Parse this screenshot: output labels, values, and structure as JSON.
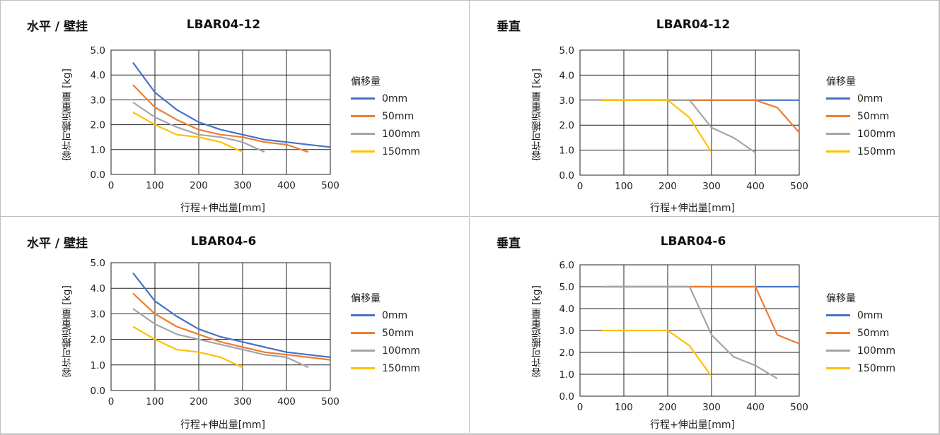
{
  "legend_title": "偏移量",
  "colors": {
    "0mm": "#4472c4",
    "50mm": "#ed7d31",
    "100mm": "#a5a5a5",
    "150mm": "#ffc000"
  },
  "chart_data": [
    {
      "type": "line",
      "orientation": "水平 / 壁挂",
      "title": "LBAR04-12",
      "xlabel": "行程+伸出量[mm]",
      "ylabel": "容许可搬运重量 [kg]",
      "xlim": [
        0,
        500
      ],
      "ylim": [
        0,
        5
      ],
      "xticks": [
        "0",
        "100",
        "200",
        "300",
        "400",
        "500"
      ],
      "yticks": [
        "0.0",
        "1.0",
        "2.0",
        "3.0",
        "4.0",
        "5.0"
      ],
      "grid": true,
      "legend": "right",
      "series": [
        {
          "name": "0mm",
          "color": "#4472c4",
          "x": [
            50,
            100,
            150,
            200,
            250,
            300,
            350,
            400,
            450,
            500
          ],
          "y": [
            4.5,
            3.3,
            2.6,
            2.1,
            1.8,
            1.6,
            1.4,
            1.3,
            1.2,
            1.1
          ]
        },
        {
          "name": "50mm",
          "color": "#ed7d31",
          "x": [
            50,
            100,
            150,
            200,
            250,
            300,
            350,
            400,
            450
          ],
          "y": [
            3.6,
            2.7,
            2.2,
            1.8,
            1.6,
            1.5,
            1.3,
            1.2,
            0.9
          ]
        },
        {
          "name": "100mm",
          "color": "#a5a5a5",
          "x": [
            50,
            100,
            150,
            200,
            250,
            300,
            350
          ],
          "y": [
            2.9,
            2.3,
            1.9,
            1.6,
            1.5,
            1.3,
            0.9
          ]
        },
        {
          "name": "150mm",
          "color": "#ffc000",
          "x": [
            50,
            100,
            150,
            200,
            250,
            300
          ],
          "y": [
            2.5,
            2.0,
            1.6,
            1.5,
            1.3,
            0.9
          ]
        }
      ]
    },
    {
      "type": "line",
      "orientation": "垂直",
      "title": "LBAR04-12",
      "xlabel": "行程+伸出量[mm]",
      "ylabel": "容许可搬运重量 [kg]",
      "xlim": [
        0,
        500
      ],
      "ylim": [
        0,
        5
      ],
      "xticks": [
        "0",
        "100",
        "200",
        "300",
        "400",
        "500"
      ],
      "yticks": [
        "0.0",
        "1.0",
        "2.0",
        "3.0",
        "4.0",
        "5.0"
      ],
      "grid": true,
      "legend": "right",
      "series": [
        {
          "name": "0mm",
          "color": "#4472c4",
          "x": [
            50,
            500
          ],
          "y": [
            3.0,
            3.0
          ]
        },
        {
          "name": "50mm",
          "color": "#ed7d31",
          "x": [
            50,
            400,
            450,
            500
          ],
          "y": [
            3.0,
            3.0,
            2.7,
            1.7
          ]
        },
        {
          "name": "100mm",
          "color": "#a5a5a5",
          "x": [
            50,
            250,
            300,
            350,
            400
          ],
          "y": [
            3.0,
            3.0,
            1.9,
            1.5,
            0.9
          ]
        },
        {
          "name": "150mm",
          "color": "#ffc000",
          "x": [
            50,
            200,
            250,
            300
          ],
          "y": [
            3.0,
            3.0,
            2.3,
            0.9
          ]
        }
      ]
    },
    {
      "type": "line",
      "orientation": "水平 / 壁挂",
      "title": "LBAR04-6",
      "xlabel": "行程+伸出量[mm]",
      "ylabel": "容许可搬运重量 [kg]",
      "xlim": [
        0,
        500
      ],
      "ylim": [
        0,
        5
      ],
      "xticks": [
        "0",
        "100",
        "200",
        "300",
        "400",
        "500"
      ],
      "yticks": [
        "0.0",
        "1.0",
        "2.0",
        "3.0",
        "4.0",
        "5.0"
      ],
      "grid": true,
      "legend": "right",
      "series": [
        {
          "name": "0mm",
          "color": "#4472c4",
          "x": [
            50,
            100,
            150,
            200,
            250,
            300,
            350,
            400,
            450,
            500
          ],
          "y": [
            4.6,
            3.5,
            2.9,
            2.4,
            2.1,
            1.9,
            1.7,
            1.5,
            1.4,
            1.3
          ]
        },
        {
          "name": "50mm",
          "color": "#ed7d31",
          "x": [
            50,
            100,
            150,
            200,
            250,
            300,
            350,
            400,
            450,
            500
          ],
          "y": [
            3.8,
            3.0,
            2.5,
            2.2,
            1.9,
            1.7,
            1.5,
            1.4,
            1.3,
            1.2
          ]
        },
        {
          "name": "100mm",
          "color": "#a5a5a5",
          "x": [
            50,
            100,
            150,
            200,
            250,
            300,
            350,
            400,
            450
          ],
          "y": [
            3.2,
            2.6,
            2.2,
            2.0,
            1.8,
            1.6,
            1.4,
            1.3,
            0.9
          ]
        },
        {
          "name": "150mm",
          "color": "#ffc000",
          "x": [
            50,
            100,
            150,
            200,
            250,
            300
          ],
          "y": [
            2.5,
            2.0,
            1.6,
            1.5,
            1.3,
            0.9
          ]
        }
      ]
    },
    {
      "type": "line",
      "orientation": "垂直",
      "title": "LBAR04-6",
      "xlabel": "行程+伸出量[mm]",
      "ylabel": "容许可搬运重量 [kg]",
      "xlim": [
        0,
        500
      ],
      "ylim": [
        0,
        6
      ],
      "xticks": [
        "0",
        "100",
        "200",
        "300",
        "400",
        "500"
      ],
      "yticks": [
        "0.0",
        "1.0",
        "2.0",
        "3.0",
        "4.0",
        "5.0",
        "6.0"
      ],
      "grid": true,
      "legend": "right",
      "series": [
        {
          "name": "0mm",
          "color": "#4472c4",
          "x": [
            50,
            500
          ],
          "y": [
            5.0,
            5.0
          ]
        },
        {
          "name": "50mm",
          "color": "#ed7d31",
          "x": [
            50,
            400,
            450,
            500
          ],
          "y": [
            5.0,
            5.0,
            2.8,
            2.4
          ]
        },
        {
          "name": "100mm",
          "color": "#a5a5a5",
          "x": [
            50,
            250,
            300,
            350,
            400,
            450
          ],
          "y": [
            5.0,
            5.0,
            2.8,
            1.8,
            1.4,
            0.8
          ]
        },
        {
          "name": "150mm",
          "color": "#ffc000",
          "x": [
            50,
            200,
            250,
            300
          ],
          "y": [
            3.0,
            3.0,
            2.3,
            0.9
          ]
        }
      ]
    }
  ]
}
